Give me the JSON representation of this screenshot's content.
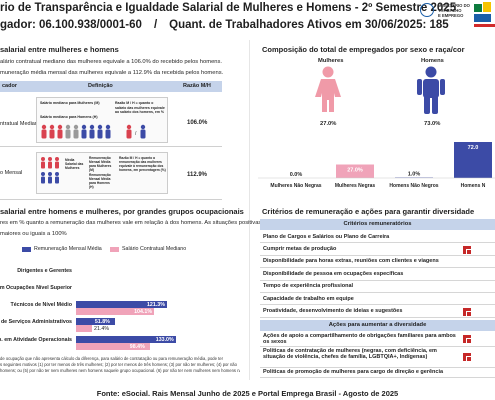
{
  "header": {
    "title": "rio de Transparência e Igualdade Salarial de Mulheres e Homens - 2º Semestre 2025",
    "org_label": "gador: 06.100.938/0001-60",
    "separator": "/",
    "workers_label": "Quant. de Trabalhadores Ativos em 30/06/2025: 185",
    "gov_ministry": [
      "MINISTÉRIO DO",
      "TRABALHO",
      "E EMPREGO"
    ]
  },
  "salary_section": {
    "title": "salarial entre mulheres e homens",
    "line1": "alário contratual mediano das mulheres equivale a 106.0% do recebido pelos homens.",
    "line2": "muneração média mensal das mulheres equivale a 112.9% da recebida pelos homens.",
    "table_headers": {
      "col1": "cador",
      "col2": "Definição",
      "col3": "Razão M/H"
    },
    "rows": [
      {
        "label": "ntratual Mediano",
        "value": "106.0%",
        "def_left_top": "Salário mediano para Mulheres (M)",
        "def_left_bottom": "Salário mediano para Homens (H)",
        "def_right": "Razão M / H = quanto o salário das mulheres equivale ao salário dos homens, em %"
      },
      {
        "label": "o Mensal",
        "value": "112.9%",
        "def_left_top": "Média Salarial das Mulheres",
        "def_left_mid": "Remuneração Mensal Média para Mulheres (M)",
        "def_left_bottom": "Remuneração Mensal Média para Homens (H)",
        "def_right": "Razão M / H = quanto a remuneração das mulheres equivale à remuneração dos homens, em percentagem (%)"
      }
    ]
  },
  "composition_section": {
    "title": "Composição do total de empregados por sexo e raça/cor",
    "women_label": "Mulheres",
    "men_label": "Homens",
    "women_pct": "27.0%",
    "men_pct": "73.0%"
  },
  "chart_data": {
    "type": "bar",
    "categories": [
      "Mulheres Não Negras",
      "Mulheres Negras",
      "Homens Não Negros",
      "Homens N"
    ],
    "values": [
      0.0,
      27.0,
      1.0,
      72.0
    ],
    "value_labels": [
      "0.0%",
      "27.0%",
      "1.0%",
      "72.0"
    ],
    "colors": [
      "#f0a3b9",
      "#f0a3b9",
      "#3c4ba6",
      "#3c4ba6"
    ],
    "ylim": [
      0,
      80
    ]
  },
  "occupation_section": {
    "title": "salarial entre homens e mulheres, por grandes grupos ocupacionais",
    "line1": "res em % quanto a remuneração das mulheres vale em relação à dos homens. As situações positivas",
    "line2": "maiores ou iguais a 100%",
    "legend_blue": "Remuneração Mensal Média",
    "legend_pink": "Salário Contratual Mediano",
    "groups": [
      {
        "label": "Dirigentes e Gerentes",
        "blue": null,
        "pink": null
      },
      {
        "label": "es em Ocupações Nível Superior",
        "blue": null,
        "pink": null
      },
      {
        "label": "Técnicos de Nível Médio",
        "blue": "121.3%",
        "pink": "104.1%",
        "blue_val": 121.3,
        "pink_val": 104.1
      },
      {
        "label": "rab. de Serviços Administrativos",
        "blue": "51.8%",
        "pink": "21.4%",
        "blue_val": 51.8,
        "pink_val": 21.4
      },
      {
        "label": "Trab. em Atividade Operacionais",
        "blue": "133.0%",
        "pink": "98.4%",
        "blue_val": 133.0,
        "pink_val": 98.4
      }
    ],
    "notes": [
      "de ocupação que não apresenta cálculo da diferença, para salário de contratação ou para remuneração média, pode ter",
      "s seguintes motivos (1) por ter menos de três mulheres; (2) por ter menos de três homens; (3) por não ter mulheres; (4) por não",
      "homens; ou (5) por não ter nem mulheres nem homens naquele grupo ocupacional. (6) por não ter nem mulheres nem homens naquel"
    ]
  },
  "criteria_section": {
    "title": "Critérios de remuneração e ações para garantir diversidade",
    "head1": "Critérios remuneratórios",
    "head2": "Ações para aumentar a diversidade",
    "criteria": [
      {
        "label": "Plano de Cargos e Salários ou Plano de Carreira",
        "marked": false
      },
      {
        "label": "Cumprir metas de produção",
        "marked": true
      },
      {
        "label": "Disponibilidade para horas extras, reuniões com clientes e viagens",
        "marked": false
      },
      {
        "label": "Disponibilidade de pessoa em ocupações específicas",
        "marked": false
      },
      {
        "label": "Tempo de experiência profissional",
        "marked": false
      },
      {
        "label": "Capacidade de trabalho em equipe",
        "marked": false
      },
      {
        "label": "Proatividade, desenvolvimento de ideias e sugestões",
        "marked": true
      }
    ],
    "actions": [
      {
        "label": "Ações de apoio a compartilhamento de obrigações familiares para ambos os sexos",
        "marked": true
      },
      {
        "label": "Políticas de contratação de mulheres (negras, com deficiência, em situação de violência, chefes de família, LGBTQIA+, Indígenas)",
        "marked": true
      },
      {
        "label": "Políticas de promoção de mulheres para cargo de direção e gerência",
        "marked": false
      }
    ]
  },
  "footer": "Fonte: eSocial. Rais Mensal Junho de 2025 e Portal Emprega Brasil - Agosto de 2025"
}
